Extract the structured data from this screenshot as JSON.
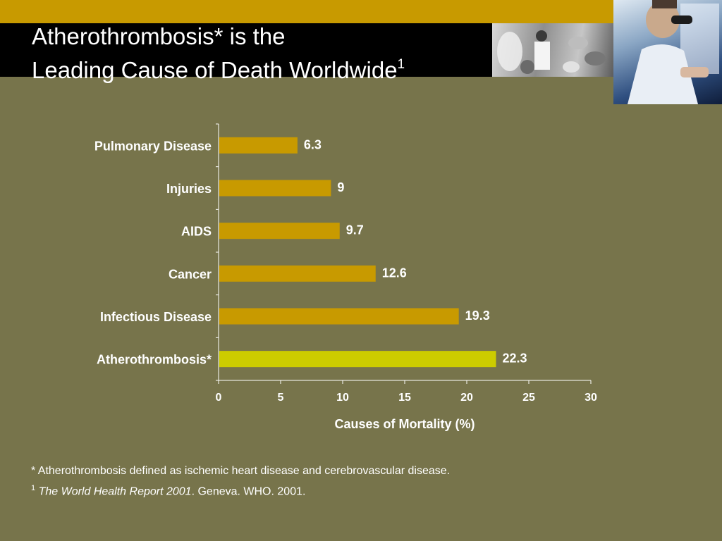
{
  "slide": {
    "title_line1": "Atherothrombosis* is the",
    "title_line2": "Leading Cause of Death Worldwide",
    "title_superscript": "1",
    "footnote1": "* Atherothrombosis defined as ischemic heart disease and cerebrovascular disease.",
    "footnote2_marker": "1",
    "footnote2_italic": "The World Health Report 2001",
    "footnote2_rest": ". Geneva. WHO. 2001."
  },
  "colors": {
    "background": "#77744b",
    "bar": "#c89a00",
    "highlight_bar": "#cccc00",
    "text": "#ffffff"
  },
  "chart_data": {
    "type": "bar",
    "orientation": "horizontal",
    "categories": [
      "Pulmonary Disease",
      "Injuries",
      "AIDS",
      "Cancer",
      "Infectious Disease",
      "Atherothrombosis*"
    ],
    "values": [
      6.3,
      9,
      9.7,
      12.6,
      19.3,
      22.3
    ],
    "value_labels": [
      "6.3",
      "9",
      "9.7",
      "12.6",
      "19.3",
      "22.3"
    ],
    "highlight_category": "Atherothrombosis*",
    "xlabel": "Causes of Mortality (%)",
    "xlim": [
      0,
      30
    ],
    "xticks": [
      0,
      5,
      10,
      15,
      20,
      25,
      30
    ],
    "grid": false
  }
}
